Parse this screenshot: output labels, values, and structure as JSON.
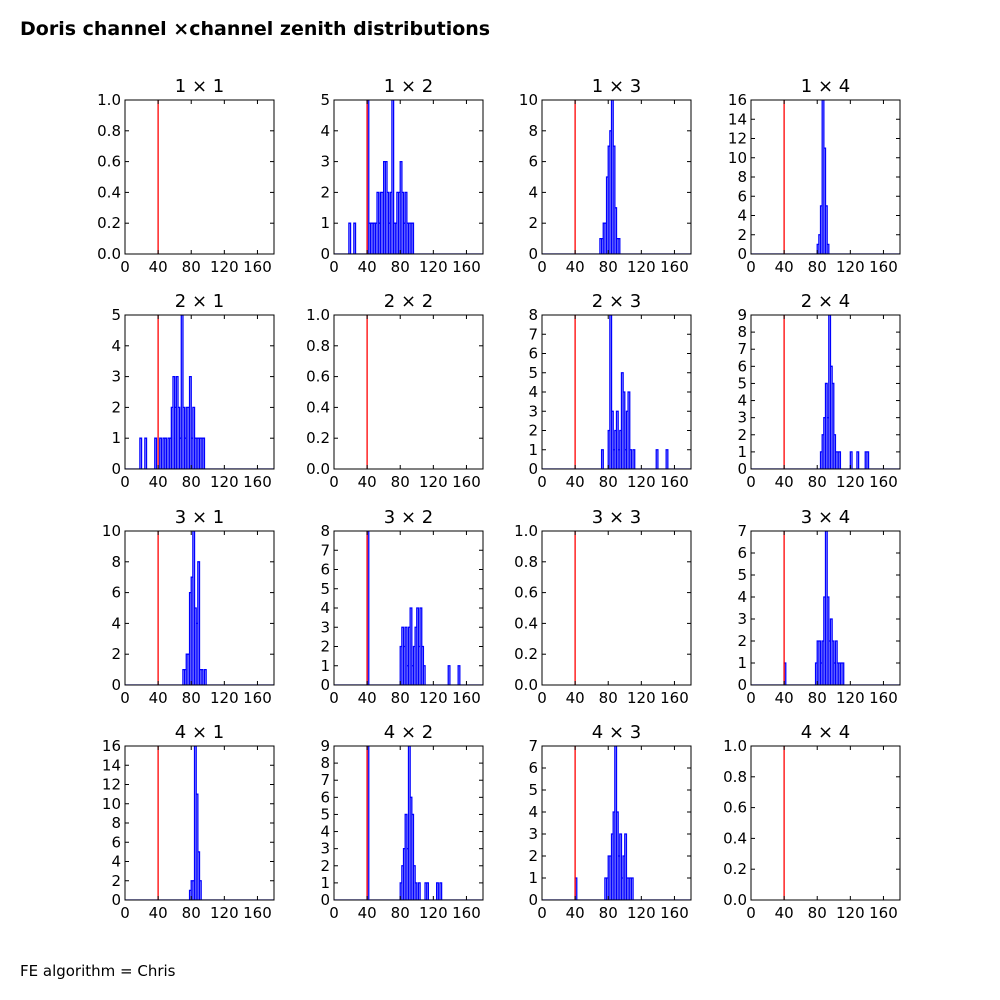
{
  "figure": {
    "title": "Doris channel ×channel zenith distributions",
    "footnote": "FE algorithm = Chris",
    "colors": {
      "hist": "#0000ff",
      "cut_line": "#ff0000",
      "axes": "#000000"
    }
  },
  "chart_data": [
    {
      "type": "histogram",
      "title": "1 × 1",
      "xlim": [
        0,
        180
      ],
      "ylim": [
        0,
        1
      ],
      "xticks": [
        0,
        40,
        80,
        120,
        160
      ],
      "yticks": [
        0.0,
        0.2,
        0.4,
        0.6,
        0.8,
        1.0
      ],
      "yformat": "1dp",
      "cut_line_x": 40,
      "bin_width": 2,
      "bins": []
    },
    {
      "type": "histogram",
      "title": "1 × 2",
      "xlim": [
        0,
        180
      ],
      "ylim": [
        0,
        5
      ],
      "xticks": [
        0,
        40,
        80,
        120,
        160
      ],
      "yticks": [
        0,
        1,
        2,
        3,
        4,
        5
      ],
      "yformat": "int",
      "cut_line_x": 40,
      "bin_width": 2,
      "bins": [
        [
          18,
          1
        ],
        [
          24,
          1
        ],
        [
          40,
          5
        ],
        [
          42,
          1
        ],
        [
          44,
          1
        ],
        [
          46,
          1
        ],
        [
          48,
          1
        ],
        [
          50,
          1
        ],
        [
          52,
          2
        ],
        [
          54,
          1
        ],
        [
          56,
          2
        ],
        [
          58,
          2
        ],
        [
          60,
          3
        ],
        [
          62,
          3
        ],
        [
          64,
          2
        ],
        [
          66,
          1
        ],
        [
          68,
          2
        ],
        [
          70,
          5
        ],
        [
          72,
          1
        ],
        [
          74,
          1
        ],
        [
          76,
          2
        ],
        [
          78,
          2
        ],
        [
          80,
          3
        ],
        [
          82,
          2
        ],
        [
          84,
          1
        ],
        [
          86,
          2
        ],
        [
          88,
          1
        ],
        [
          90,
          1
        ],
        [
          92,
          1
        ],
        [
          94,
          1
        ]
      ]
    },
    {
      "type": "histogram",
      "title": "1 × 3",
      "xlim": [
        0,
        180
      ],
      "ylim": [
        0,
        10
      ],
      "xticks": [
        0,
        40,
        80,
        120,
        160
      ],
      "yticks": [
        0,
        2,
        4,
        6,
        8,
        10
      ],
      "yformat": "int",
      "cut_line_x": 40,
      "bin_width": 2,
      "bins": [
        [
          70,
          1
        ],
        [
          72,
          1
        ],
        [
          74,
          2
        ],
        [
          76,
          2
        ],
        [
          78,
          5
        ],
        [
          80,
          7
        ],
        [
          82,
          8
        ],
        [
          84,
          10
        ],
        [
          86,
          7
        ],
        [
          88,
          3
        ],
        [
          90,
          1
        ],
        [
          92,
          1
        ]
      ]
    },
    {
      "type": "histogram",
      "title": "1 × 4",
      "xlim": [
        0,
        180
      ],
      "ylim": [
        0,
        16
      ],
      "xticks": [
        0,
        40,
        80,
        120,
        160
      ],
      "yticks": [
        0,
        2,
        4,
        6,
        8,
        10,
        12,
        14,
        16
      ],
      "yformat": "int",
      "cut_line_x": 40,
      "bin_width": 2,
      "bins": [
        [
          80,
          1
        ],
        [
          82,
          2
        ],
        [
          84,
          5
        ],
        [
          86,
          16
        ],
        [
          88,
          11
        ],
        [
          90,
          5
        ],
        [
          92,
          1
        ]
      ]
    },
    {
      "type": "histogram",
      "title": "2 × 1",
      "xlim": [
        0,
        180
      ],
      "ylim": [
        0,
        5
      ],
      "xticks": [
        0,
        40,
        80,
        120,
        160
      ],
      "yticks": [
        0,
        1,
        2,
        3,
        4,
        5
      ],
      "yformat": "int",
      "cut_line_x": 40,
      "bin_width": 2,
      "bins": [
        [
          18,
          1
        ],
        [
          24,
          1
        ],
        [
          36,
          1
        ],
        [
          42,
          1
        ],
        [
          46,
          1
        ],
        [
          48,
          1
        ],
        [
          52,
          1
        ],
        [
          54,
          1
        ],
        [
          56,
          2
        ],
        [
          58,
          3
        ],
        [
          60,
          2
        ],
        [
          62,
          3
        ],
        [
          64,
          2
        ],
        [
          66,
          1
        ],
        [
          68,
          5
        ],
        [
          70,
          2
        ],
        [
          72,
          1
        ],
        [
          74,
          2
        ],
        [
          76,
          2
        ],
        [
          78,
          3
        ],
        [
          80,
          1
        ],
        [
          82,
          2
        ],
        [
          84,
          1
        ],
        [
          86,
          1
        ],
        [
          88,
          1
        ],
        [
          90,
          1
        ],
        [
          92,
          1
        ],
        [
          94,
          1
        ]
      ]
    },
    {
      "type": "histogram",
      "title": "2 × 2",
      "xlim": [
        0,
        180
      ],
      "ylim": [
        0,
        1
      ],
      "xticks": [
        0,
        40,
        80,
        120,
        160
      ],
      "yticks": [
        0.0,
        0.2,
        0.4,
        0.6,
        0.8,
        1.0
      ],
      "yformat": "1dp",
      "cut_line_x": 40,
      "bin_width": 2,
      "bins": []
    },
    {
      "type": "histogram",
      "title": "2 × 3",
      "xlim": [
        0,
        180
      ],
      "ylim": [
        0,
        8
      ],
      "xticks": [
        0,
        40,
        80,
        120,
        160
      ],
      "yticks": [
        0,
        1,
        2,
        3,
        4,
        5,
        6,
        7,
        8
      ],
      "yformat": "int",
      "cut_line_x": 40,
      "bin_width": 2,
      "bins": [
        [
          72,
          1
        ],
        [
          80,
          2
        ],
        [
          82,
          8
        ],
        [
          84,
          3
        ],
        [
          86,
          1
        ],
        [
          88,
          2
        ],
        [
          90,
          3
        ],
        [
          92,
          1
        ],
        [
          94,
          2
        ],
        [
          96,
          5
        ],
        [
          98,
          4
        ],
        [
          100,
          1
        ],
        [
          102,
          3
        ],
        [
          104,
          4
        ],
        [
          106,
          1
        ],
        [
          110,
          1
        ],
        [
          138,
          1
        ],
        [
          150,
          1
        ]
      ]
    },
    {
      "type": "histogram",
      "title": "2 × 4",
      "xlim": [
        0,
        180
      ],
      "ylim": [
        0,
        9
      ],
      "xticks": [
        0,
        40,
        80,
        120,
        160
      ],
      "yticks": [
        0,
        1,
        2,
        3,
        4,
        5,
        6,
        7,
        8,
        9
      ],
      "yformat": "int",
      "cut_line_x": 40,
      "bin_width": 2,
      "bins": [
        [
          84,
          1
        ],
        [
          86,
          2
        ],
        [
          88,
          3
        ],
        [
          90,
          5
        ],
        [
          92,
          3
        ],
        [
          94,
          9
        ],
        [
          96,
          6
        ],
        [
          98,
          5
        ],
        [
          100,
          2
        ],
        [
          102,
          1
        ],
        [
          104,
          1
        ],
        [
          106,
          1
        ],
        [
          120,
          1
        ],
        [
          128,
          1
        ],
        [
          138,
          1
        ],
        [
          140,
          1
        ]
      ]
    },
    {
      "type": "histogram",
      "title": "3 × 1",
      "xlim": [
        0,
        180
      ],
      "ylim": [
        0,
        10
      ],
      "xticks": [
        0,
        40,
        80,
        120,
        160
      ],
      "yticks": [
        0,
        2,
        4,
        6,
        8,
        10
      ],
      "yformat": "int",
      "cut_line_x": 40,
      "bin_width": 2,
      "bins": [
        [
          70,
          1
        ],
        [
          72,
          1
        ],
        [
          74,
          2
        ],
        [
          76,
          2
        ],
        [
          78,
          6
        ],
        [
          80,
          7
        ],
        [
          82,
          10
        ],
        [
          84,
          5
        ],
        [
          86,
          4
        ],
        [
          88,
          8
        ],
        [
          90,
          1
        ],
        [
          92,
          1
        ],
        [
          96,
          1
        ]
      ]
    },
    {
      "type": "histogram",
      "title": "3 × 2",
      "xlim": [
        0,
        180
      ],
      "ylim": [
        0,
        8
      ],
      "xticks": [
        0,
        40,
        80,
        120,
        160
      ],
      "yticks": [
        0,
        1,
        2,
        3,
        4,
        5,
        6,
        7,
        8
      ],
      "yformat": "int",
      "cut_line_x": 40,
      "bin_width": 2,
      "bins": [
        [
          40,
          8
        ],
        [
          80,
          2
        ],
        [
          82,
          3
        ],
        [
          84,
          2
        ],
        [
          86,
          3
        ],
        [
          88,
          1
        ],
        [
          90,
          3
        ],
        [
          92,
          4
        ],
        [
          94,
          1
        ],
        [
          96,
          2
        ],
        [
          98,
          3
        ],
        [
          100,
          4
        ],
        [
          102,
          2
        ],
        [
          104,
          4
        ],
        [
          106,
          2
        ],
        [
          108,
          1
        ],
        [
          138,
          1
        ],
        [
          150,
          1
        ]
      ]
    },
    {
      "type": "histogram",
      "title": "3 × 3",
      "xlim": [
        0,
        180
      ],
      "ylim": [
        0,
        1
      ],
      "xticks": [
        0,
        40,
        80,
        120,
        160
      ],
      "yticks": [
        0.0,
        0.2,
        0.4,
        0.6,
        0.8,
        1.0
      ],
      "yformat": "1dp",
      "cut_line_x": 40,
      "bin_width": 2,
      "bins": []
    },
    {
      "type": "histogram",
      "title": "3 × 4",
      "xlim": [
        0,
        180
      ],
      "ylim": [
        0,
        7
      ],
      "xticks": [
        0,
        40,
        80,
        120,
        160
      ],
      "yticks": [
        0,
        1,
        2,
        3,
        4,
        5,
        6,
        7
      ],
      "yformat": "int",
      "cut_line_x": 40,
      "bin_width": 2,
      "bins": [
        [
          40,
          1
        ],
        [
          78,
          1
        ],
        [
          80,
          2
        ],
        [
          82,
          2
        ],
        [
          84,
          1
        ],
        [
          86,
          2
        ],
        [
          88,
          4
        ],
        [
          90,
          7
        ],
        [
          92,
          4
        ],
        [
          94,
          2
        ],
        [
          96,
          3
        ],
        [
          98,
          2
        ],
        [
          100,
          1
        ],
        [
          102,
          2
        ],
        [
          104,
          1
        ],
        [
          106,
          1
        ],
        [
          108,
          1
        ],
        [
          110,
          1
        ]
      ]
    },
    {
      "type": "histogram",
      "title": "4 × 1",
      "xlim": [
        0,
        180
      ],
      "ylim": [
        0,
        16
      ],
      "xticks": [
        0,
        40,
        80,
        120,
        160
      ],
      "yticks": [
        0,
        2,
        4,
        6,
        8,
        10,
        12,
        14,
        16
      ],
      "yformat": "int",
      "cut_line_x": 40,
      "bin_width": 2,
      "bins": [
        [
          78,
          1
        ],
        [
          80,
          2
        ],
        [
          82,
          2
        ],
        [
          84,
          16
        ],
        [
          86,
          11
        ],
        [
          88,
          5
        ],
        [
          90,
          2
        ]
      ]
    },
    {
      "type": "histogram",
      "title": "4 × 2",
      "xlim": [
        0,
        180
      ],
      "ylim": [
        0,
        9
      ],
      "xticks": [
        0,
        40,
        80,
        120,
        160
      ],
      "yticks": [
        0,
        1,
        2,
        3,
        4,
        5,
        6,
        7,
        8,
        9
      ],
      "yformat": "int",
      "cut_line_x": 40,
      "bin_width": 2,
      "bins": [
        [
          40,
          9
        ],
        [
          80,
          1
        ],
        [
          82,
          2
        ],
        [
          84,
          3
        ],
        [
          86,
          5
        ],
        [
          88,
          3
        ],
        [
          90,
          9
        ],
        [
          92,
          6
        ],
        [
          94,
          5
        ],
        [
          96,
          2
        ],
        [
          98,
          1
        ],
        [
          102,
          1
        ],
        [
          110,
          1
        ],
        [
          112,
          1
        ],
        [
          124,
          1
        ],
        [
          128,
          1
        ]
      ]
    },
    {
      "type": "histogram",
      "title": "4 × 3",
      "xlim": [
        0,
        180
      ],
      "ylim": [
        0,
        7
      ],
      "xticks": [
        0,
        40,
        80,
        120,
        160
      ],
      "yticks": [
        0,
        1,
        2,
        3,
        4,
        5,
        6,
        7
      ],
      "yformat": "int",
      "cut_line_x": 40,
      "bin_width": 2,
      "bins": [
        [
          40,
          1
        ],
        [
          76,
          1
        ],
        [
          78,
          1
        ],
        [
          80,
          2
        ],
        [
          82,
          2
        ],
        [
          84,
          3
        ],
        [
          86,
          4
        ],
        [
          88,
          7
        ],
        [
          90,
          4
        ],
        [
          92,
          2
        ],
        [
          94,
          3
        ],
        [
          96,
          1
        ],
        [
          98,
          2
        ],
        [
          100,
          3
        ],
        [
          102,
          1
        ],
        [
          104,
          1
        ],
        [
          106,
          1
        ],
        [
          108,
          1
        ]
      ]
    },
    {
      "type": "histogram",
      "title": "4 × 4",
      "xlim": [
        0,
        180
      ],
      "ylim": [
        0,
        1
      ],
      "xticks": [
        0,
        40,
        80,
        120,
        160
      ],
      "yticks": [
        0.0,
        0.2,
        0.4,
        0.6,
        0.8,
        1.0
      ],
      "yformat": "1dp",
      "cut_line_x": 40,
      "bin_width": 2,
      "bins": []
    }
  ]
}
